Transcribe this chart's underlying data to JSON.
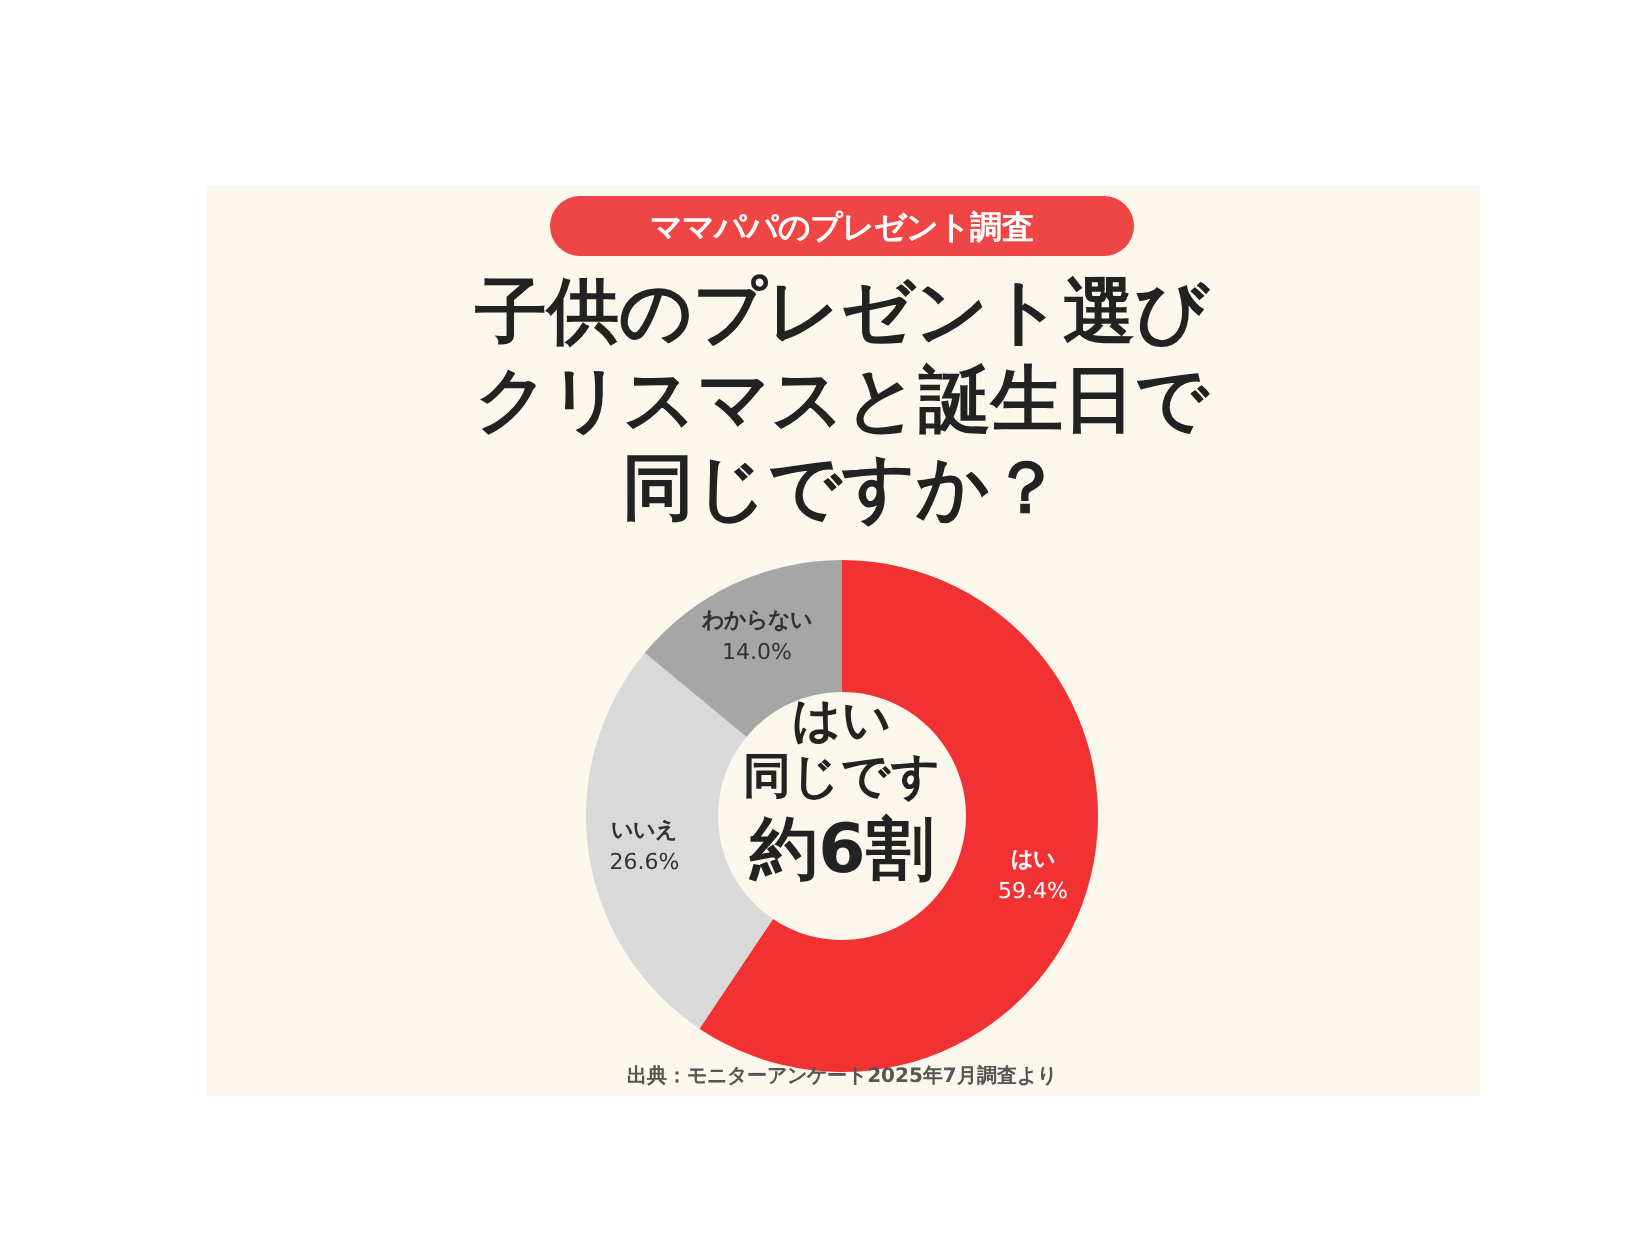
{
  "chart_data": {
    "type": "donut",
    "subtitle": "ママパパのプレゼント調査",
    "title": "子供のプレゼント選びクリスマスと誕生日で同じですか？",
    "categories": [
      "はい",
      "いいえ",
      "わからない"
    ],
    "values": [
      59.4,
      26.6,
      14.0
    ],
    "colors": [
      "#f23232",
      "#d9d9d9",
      "#a6a6a6"
    ],
    "value_labels": [
      "59.4%",
      "26.6%",
      "14.0%"
    ],
    "annotations": [
      "はい",
      "同じです",
      "約6割",
      "出典：モニターアンケート2025年7月調査より"
    ]
  }
}
